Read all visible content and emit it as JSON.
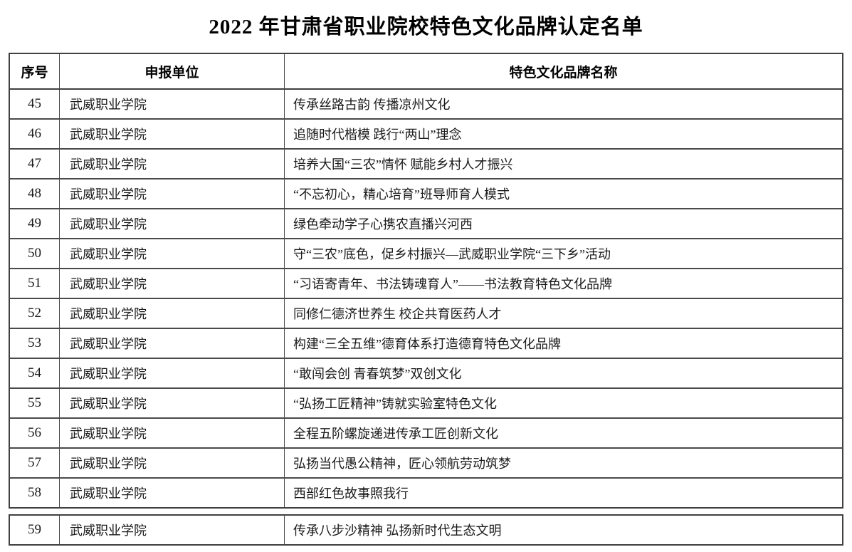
{
  "page": {
    "title": "2022 年甘肃省职业院校特色文化品牌认定名单"
  },
  "table": {
    "headers": {
      "no": "序号",
      "unit": "申报单位",
      "brand": "特色文化品牌名称"
    },
    "rows": [
      {
        "no": "45",
        "unit": "武威职业学院",
        "brand": "传承丝路古韵 传播凉州文化"
      },
      {
        "no": "46",
        "unit": "武威职业学院",
        "brand": "追随时代楷模 践行“两山”理念"
      },
      {
        "no": "47",
        "unit": "武威职业学院",
        "brand": "培养大国“三农”情怀 赋能乡村人才振兴"
      },
      {
        "no": "48",
        "unit": "武威职业学院",
        "brand": "“不忘初心，精心培育”班导师育人模式"
      },
      {
        "no": "49",
        "unit": "武威职业学院",
        "brand": "绿色牵动学子心携农直播兴河西"
      },
      {
        "no": "50",
        "unit": "武威职业学院",
        "brand": "守“三农”底色，促乡村振兴—武威职业学院“三下乡”活动"
      },
      {
        "no": "51",
        "unit": "武威职业学院",
        "brand": "“习语寄青年、书法铸魂育人”——书法教育特色文化品牌"
      },
      {
        "no": "52",
        "unit": "武威职业学院",
        "brand": "同修仁德济世养生 校企共育医药人才"
      },
      {
        "no": "53",
        "unit": "武威职业学院",
        "brand": "构建“三全五维”德育体系打造德育特色文化品牌"
      },
      {
        "no": "54",
        "unit": "武威职业学院",
        "brand": "“敢闯会创 青春筑梦”双创文化"
      },
      {
        "no": "55",
        "unit": "武威职业学院",
        "brand": "“弘扬工匠精神”铸就实验室特色文化"
      },
      {
        "no": "56",
        "unit": "武威职业学院",
        "brand": "全程五阶螺旋递进传承工匠创新文化"
      },
      {
        "no": "57",
        "unit": "武威职业学院",
        "brand": "弘扬当代愚公精神，匠心领航劳动筑梦"
      },
      {
        "no": "58",
        "unit": "武威职业学院",
        "brand": "西部红色故事照我行"
      }
    ],
    "continued_rows": [
      {
        "no": "59",
        "unit": "武威职业学院",
        "brand": "传承八步沙精神 弘扬新时代生态文明"
      }
    ]
  },
  "colors": {
    "background": "#ffffff",
    "text": "#1a1a1a",
    "border": "#4a4a4a"
  }
}
